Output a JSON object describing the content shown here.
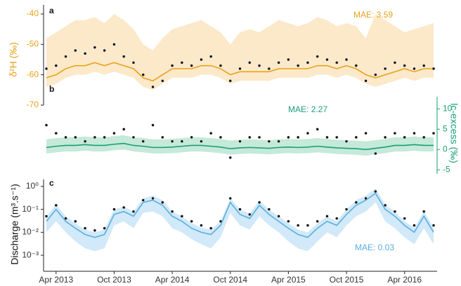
{
  "chart_data": [
    {
      "type": "line",
      "label": "a",
      "ylabel": "δ²H (‰)",
      "annotation": "MAE: 3.59",
      "color": "#e8a21c",
      "band_color": "#fbe3bd",
      "point_color": "#111111",
      "y_axis_side": "left",
      "log_scale": false,
      "xlim": [
        "2013-03",
        "2016-07"
      ],
      "x": [
        "2013-03",
        "2013-04",
        "2013-05",
        "2013-06",
        "2013-07",
        "2013-08",
        "2013-09",
        "2013-10",
        "2013-11",
        "2013-12",
        "2014-01",
        "2014-02",
        "2014-03",
        "2014-04",
        "2014-05",
        "2014-06",
        "2014-07",
        "2014-08",
        "2014-09",
        "2014-10",
        "2014-11",
        "2014-12",
        "2015-01",
        "2015-02",
        "2015-03",
        "2015-04",
        "2015-05",
        "2015-06",
        "2015-07",
        "2015-08",
        "2015-09",
        "2015-10",
        "2015-11",
        "2015-12",
        "2016-01",
        "2016-02",
        "2016-03",
        "2016-04",
        "2016-05",
        "2016-06",
        "2016-07"
      ],
      "observed": [
        -58,
        -57,
        -54,
        -52,
        -53,
        -51,
        -52,
        -50,
        -54,
        -56,
        -60,
        -64,
        -62,
        -57,
        -56,
        -57,
        -55,
        -54,
        -57,
        -62,
        -58,
        -56,
        -57,
        -58,
        -56,
        -55,
        -57,
        -56,
        -54,
        -55,
        -56,
        -55,
        -57,
        -62,
        -60,
        -58,
        -56,
        -57,
        -58,
        -57,
        -58
      ],
      "model": [
        -61,
        -60,
        -58,
        -57,
        -57,
        -56,
        -57,
        -56,
        -57,
        -58,
        -61,
        -62,
        -60,
        -58,
        -58,
        -58,
        -57,
        -57,
        -58,
        -60,
        -59,
        -59,
        -59,
        -59,
        -58,
        -58,
        -58,
        -58,
        -57,
        -57,
        -58,
        -57,
        -58,
        -60,
        -61,
        -60,
        -59,
        -58,
        -59,
        -58,
        -58
      ],
      "band_lower": [
        -64,
        -63,
        -61,
        -60,
        -60,
        -59,
        -60,
        -59,
        -60,
        -61,
        -64,
        -65,
        -63,
        -61,
        -61,
        -61,
        -60,
        -60,
        -61,
        -63,
        -62,
        -62,
        -62,
        -62,
        -61,
        -61,
        -61,
        -61,
        -60,
        -60,
        -61,
        -60,
        -61,
        -63,
        -64,
        -63,
        -62,
        -61,
        -62,
        -61,
        -61
      ],
      "band_upper": [
        -48,
        -46,
        -44,
        -42,
        -42,
        -41,
        -43,
        -40,
        -42,
        -45,
        -50,
        -52,
        -48,
        -45,
        -44,
        -43,
        -42,
        -44,
        -46,
        -50,
        -46,
        -45,
        -46,
        -44,
        -42,
        -43,
        -44,
        -43,
        -41,
        -42,
        -44,
        -43,
        -44,
        -48,
        -40,
        -42,
        -44,
        -46,
        -45,
        -44,
        -43
      ],
      "ylim": [
        -70,
        -37
      ],
      "yticks": [
        -70,
        -60,
        -50,
        -40
      ]
    },
    {
      "type": "line",
      "label": "b",
      "ylabel": "lc-excess (‰)",
      "annotation": "MAE: 2.27",
      "color": "#1a9e77",
      "band_color": "#b7e4d1",
      "point_color": "#111111",
      "y_axis_side": "right",
      "log_scale": false,
      "xlim": [
        "2013-03",
        "2016-07"
      ],
      "x": [
        "2013-03",
        "2013-04",
        "2013-05",
        "2013-06",
        "2013-07",
        "2013-08",
        "2013-09",
        "2013-10",
        "2013-11",
        "2013-12",
        "2014-01",
        "2014-02",
        "2014-03",
        "2014-04",
        "2014-05",
        "2014-06",
        "2014-07",
        "2014-08",
        "2014-09",
        "2014-10",
        "2014-11",
        "2014-12",
        "2015-01",
        "2015-02",
        "2015-03",
        "2015-04",
        "2015-05",
        "2015-06",
        "2015-07",
        "2015-08",
        "2015-09",
        "2015-10",
        "2015-11",
        "2015-12",
        "2016-01",
        "2016-02",
        "2016-03",
        "2016-04",
        "2016-05",
        "2016-06",
        "2016-07"
      ],
      "observed": [
        6,
        4,
        3,
        3,
        2,
        3,
        3,
        4,
        5,
        3,
        2,
        6,
        3,
        2,
        2,
        3,
        2,
        4,
        3,
        -2,
        2,
        3,
        3,
        2,
        2,
        3,
        3,
        4,
        5,
        3,
        3,
        2,
        3,
        4,
        -1,
        3,
        4,
        3,
        4,
        3,
        4
      ],
      "model": [
        0.5,
        0.8,
        1,
        1,
        1.2,
        1,
        1,
        1.3,
        1.5,
        1,
        0.8,
        0.5,
        0.5,
        0.6,
        0.8,
        1,
        1,
        0.8,
        0.6,
        0.2,
        0.4,
        0.5,
        0.4,
        0.3,
        0.5,
        0.6,
        0.5,
        0.6,
        0.8,
        0.6,
        0.4,
        0.3,
        0.2,
        0,
        0.3,
        0.6,
        1,
        1,
        1.2,
        1,
        1
      ],
      "band_lower": [
        -1,
        -0.7,
        -0.5,
        -0.5,
        -0.3,
        -0.5,
        -0.5,
        -0.2,
        0,
        -0.5,
        -0.7,
        -1,
        -1,
        -0.9,
        -0.7,
        -0.5,
        -0.5,
        -0.7,
        -0.9,
        -1.3,
        -1.1,
        -1,
        -1.1,
        -1.2,
        -1,
        -0.9,
        -1,
        -0.9,
        -0.7,
        -0.9,
        -1.1,
        -1.2,
        -1.3,
        -1.5,
        -1.2,
        -0.9,
        -0.5,
        -0.5,
        -0.3,
        -0.5,
        -0.5
      ],
      "band_upper": [
        2.5,
        2.8,
        3,
        3,
        3.2,
        3,
        3,
        3.3,
        3.5,
        3,
        2.8,
        2.5,
        2.5,
        2.6,
        2.8,
        3,
        3,
        2.8,
        2.6,
        2.2,
        2.4,
        2.5,
        2.4,
        2.3,
        2.5,
        2.6,
        2.5,
        2.6,
        2.8,
        2.6,
        2.4,
        2.3,
        2.2,
        2,
        2.3,
        2.6,
        3,
        3,
        3.2,
        3,
        3
      ],
      "ylim": [
        -6,
        13
      ],
      "yticks": [
        -5,
        0,
        5,
        10
      ]
    },
    {
      "type": "line",
      "label": "c",
      "ylabel": "Discharge (m³.s⁻¹)",
      "annotation": "MAE: 0.03",
      "color": "#5aade0",
      "band_color": "#c6e3f6",
      "point_color": "#111111",
      "y_axis_side": "left",
      "log_scale": true,
      "xlim": [
        "2013-03",
        "2016-07"
      ],
      "xticks": [
        {
          "value": "2013-04",
          "label": "Apr 2013"
        },
        {
          "value": "2013-10",
          "label": "Oct 2013"
        },
        {
          "value": "2014-04",
          "label": "Apr 2014"
        },
        {
          "value": "2014-10",
          "label": "Oct 2014"
        },
        {
          "value": "2015-04",
          "label": "Apr 2015"
        },
        {
          "value": "2015-10",
          "label": "Oct 2015"
        },
        {
          "value": "2016-04",
          "label": "Apr 2016"
        }
      ],
      "x": [
        "2013-03",
        "2013-04",
        "2013-05",
        "2013-06",
        "2013-07",
        "2013-08",
        "2013-09",
        "2013-10",
        "2013-11",
        "2013-12",
        "2014-01",
        "2014-02",
        "2014-03",
        "2014-04",
        "2014-05",
        "2014-06",
        "2014-07",
        "2014-08",
        "2014-09",
        "2014-10",
        "2014-11",
        "2014-12",
        "2015-01",
        "2015-02",
        "2015-03",
        "2015-04",
        "2015-05",
        "2015-06",
        "2015-07",
        "2015-08",
        "2015-09",
        "2015-10",
        "2015-11",
        "2015-12",
        "2016-01",
        "2016-02",
        "2016-03",
        "2016-04",
        "2016-05",
        "2016-06",
        "2016-07"
      ],
      "observed": [
        0.05,
        0.15,
        0.04,
        0.03,
        0.015,
        0.012,
        0.015,
        0.1,
        0.12,
        0.08,
        0.25,
        0.3,
        0.2,
        0.08,
        0.05,
        0.03,
        0.02,
        0.015,
        0.03,
        0.3,
        0.1,
        0.06,
        0.2,
        0.1,
        0.05,
        0.03,
        0.02,
        0.02,
        0.03,
        0.05,
        0.04,
        0.1,
        0.2,
        0.3,
        0.6,
        0.15,
        0.08,
        0.04,
        0.02,
        0.08,
        0.02
      ],
      "model": [
        0.03,
        0.1,
        0.03,
        0.015,
        0.008,
        0.006,
        0.008,
        0.06,
        0.08,
        0.05,
        0.2,
        0.25,
        0.15,
        0.05,
        0.03,
        0.015,
        0.01,
        0.008,
        0.02,
        0.2,
        0.06,
        0.04,
        0.15,
        0.06,
        0.03,
        0.015,
        0.008,
        0.006,
        0.015,
        0.03,
        0.02,
        0.06,
        0.15,
        0.25,
        0.5,
        0.1,
        0.05,
        0.02,
        0.01,
        0.05,
        0.01
      ],
      "band_lower": [
        0.01,
        0.03,
        0.01,
        0.004,
        0.002,
        0.0015,
        0.002,
        0.02,
        0.03,
        0.015,
        0.07,
        0.08,
        0.05,
        0.015,
        0.01,
        0.005,
        0.003,
        0.002,
        0.006,
        0.07,
        0.02,
        0.013,
        0.05,
        0.02,
        0.01,
        0.004,
        0.002,
        0.0015,
        0.004,
        0.01,
        0.006,
        0.02,
        0.05,
        0.08,
        0.2,
        0.03,
        0.015,
        0.006,
        0.003,
        0.015,
        0.003
      ],
      "band_upper": [
        0.05,
        0.16,
        0.05,
        0.025,
        0.013,
        0.01,
        0.013,
        0.1,
        0.13,
        0.08,
        0.3,
        0.4,
        0.25,
        0.08,
        0.05,
        0.025,
        0.016,
        0.013,
        0.03,
        0.3,
        0.1,
        0.065,
        0.25,
        0.1,
        0.05,
        0.025,
        0.013,
        0.01,
        0.025,
        0.05,
        0.03,
        0.1,
        0.25,
        0.4,
        0.8,
        0.16,
        0.08,
        0.03,
        0.016,
        0.08,
        0.016
      ],
      "ylim": [
        0.0002,
        2
      ],
      "yticks": [
        {
          "value": 1,
          "label": "10⁰"
        },
        {
          "value": 0.1,
          "label": "10⁻¹"
        },
        {
          "value": 0.01,
          "label": "10⁻²"
        },
        {
          "value": 0.001,
          "label": "10⁻³"
        }
      ]
    }
  ]
}
